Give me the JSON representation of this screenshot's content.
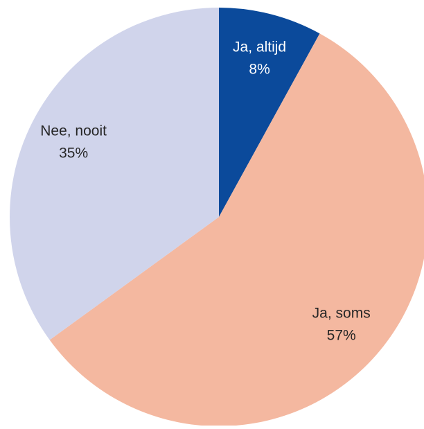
{
  "chart_data": {
    "type": "pie",
    "categories": [
      "Ja, altijd",
      "Ja, soms",
      "Nee, nooit"
    ],
    "values": [
      8,
      57,
      35
    ],
    "value_labels": [
      "8%",
      "57%",
      "35%"
    ],
    "colors": [
      "#0b4a9b",
      "#f4b8a0",
      "#d0d4eb"
    ]
  }
}
